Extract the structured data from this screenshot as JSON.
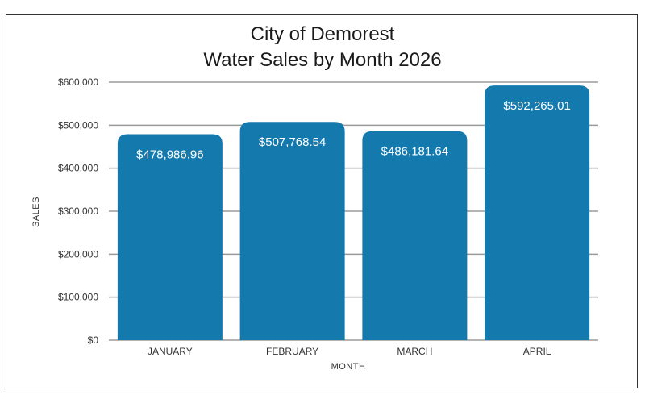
{
  "chart_data": {
    "type": "bar",
    "title": [
      "City of Demorest",
      "Water Sales by Month 2026"
    ],
    "xlabel": "MONTH",
    "ylabel": "SALES",
    "categories": [
      "JANUARY",
      "FEBRUARY",
      "MARCH",
      "APRIL"
    ],
    "values": [
      478986.96,
      507768.54,
      486181.64,
      592265.01
    ],
    "value_labels": [
      "$478,986.96",
      "$507,768.54",
      "$486,181.64",
      "$592,265.01"
    ],
    "ylim": [
      0,
      600000
    ],
    "yticks": [
      0,
      100000,
      200000,
      300000,
      400000,
      500000,
      600000
    ],
    "ytick_labels": [
      "$0",
      "$100,000",
      "$200,000",
      "$300,000",
      "$400,000",
      "$500,000",
      "$600,000"
    ],
    "grid": true,
    "legend": "none",
    "colors": {
      "bar": "#1479ad",
      "grid": "#9a9a9a",
      "label": "#ffffff"
    }
  }
}
